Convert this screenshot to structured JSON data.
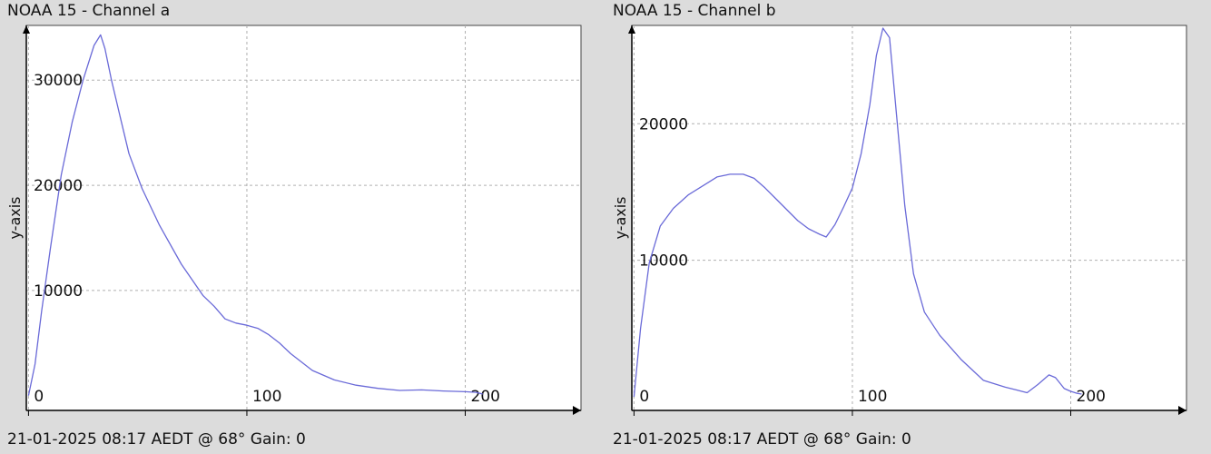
{
  "colors": {
    "background": "#dcdcdc",
    "plot_bg": "#ffffff",
    "line": "#6a6ad8",
    "grid": "#b0b0b0",
    "axis": "#000000"
  },
  "chart_data": [
    {
      "type": "line",
      "title": "NOAA 15 - Channel a",
      "ylabel": "y-axis",
      "footer": "21-01-2025 08:17 AEDT @ 68° Gain: 0",
      "xlim": [
        -1,
        253
      ],
      "ylim": [
        -1400,
        35200
      ],
      "x_ticks": [
        0,
        100,
        200
      ],
      "y_ticks": [
        10000,
        20000,
        30000
      ],
      "x_tick_labels": [
        "0",
        "100",
        "200"
      ],
      "y_tick_labels": [
        "10000",
        "20000",
        "30000"
      ],
      "grid": true,
      "series": [
        {
          "x": [
            0,
            3,
            6,
            10,
            15,
            20,
            25,
            30,
            33,
            35,
            38,
            42,
            46,
            52,
            60,
            70,
            80,
            85,
            90,
            95,
            100,
            105,
            110,
            115,
            120,
            130,
            140,
            150,
            160,
            170,
            180,
            190,
            200,
            205,
            208
          ],
          "y": [
            0,
            3000,
            8000,
            14000,
            21000,
            26000,
            30000,
            33300,
            34300,
            33000,
            30000,
            26500,
            23000,
            19700,
            16200,
            12500,
            9500,
            8500,
            7300,
            6900,
            6700,
            6400,
            5800,
            5000,
            4000,
            2400,
            1500,
            1000,
            700,
            500,
            550,
            450,
            380,
            320,
            150
          ]
        }
      ]
    },
    {
      "type": "line",
      "title": "NOAA 15 - Channel b",
      "ylabel": "y-axis",
      "footer": "21-01-2025 08:17 AEDT @ 68° Gain: 0",
      "xlim": [
        -1,
        253
      ],
      "ylim": [
        -1000,
        27200
      ],
      "x_ticks": [
        0,
        100,
        200
      ],
      "y_ticks": [
        10000,
        20000
      ],
      "x_tick_labels": [
        "0",
        "100",
        "200"
      ],
      "y_tick_labels": [
        "10000",
        "20000"
      ],
      "grid": true,
      "series": [
        {
          "x": [
            0,
            3,
            7,
            12,
            18,
            25,
            32,
            38,
            44,
            50,
            55,
            60,
            65,
            70,
            75,
            80,
            85,
            88,
            92,
            96,
            100,
            104,
            108,
            111,
            114,
            117,
            120,
            124,
            128,
            133,
            140,
            150,
            160,
            170,
            175,
            180,
            185,
            190,
            193,
            197,
            200,
            203,
            205
          ],
          "y": [
            0,
            5000,
            9800,
            12500,
            13800,
            14800,
            15500,
            16100,
            16300,
            16300,
            16000,
            15300,
            14500,
            13700,
            12900,
            12300,
            11900,
            11700,
            12600,
            13900,
            15300,
            17800,
            21400,
            25000,
            27000,
            26300,
            21000,
            14000,
            9000,
            6200,
            4500,
            2700,
            1200,
            700,
            500,
            300,
            900,
            1600,
            1400,
            600,
            400,
            250,
            200
          ]
        }
      ]
    }
  ]
}
